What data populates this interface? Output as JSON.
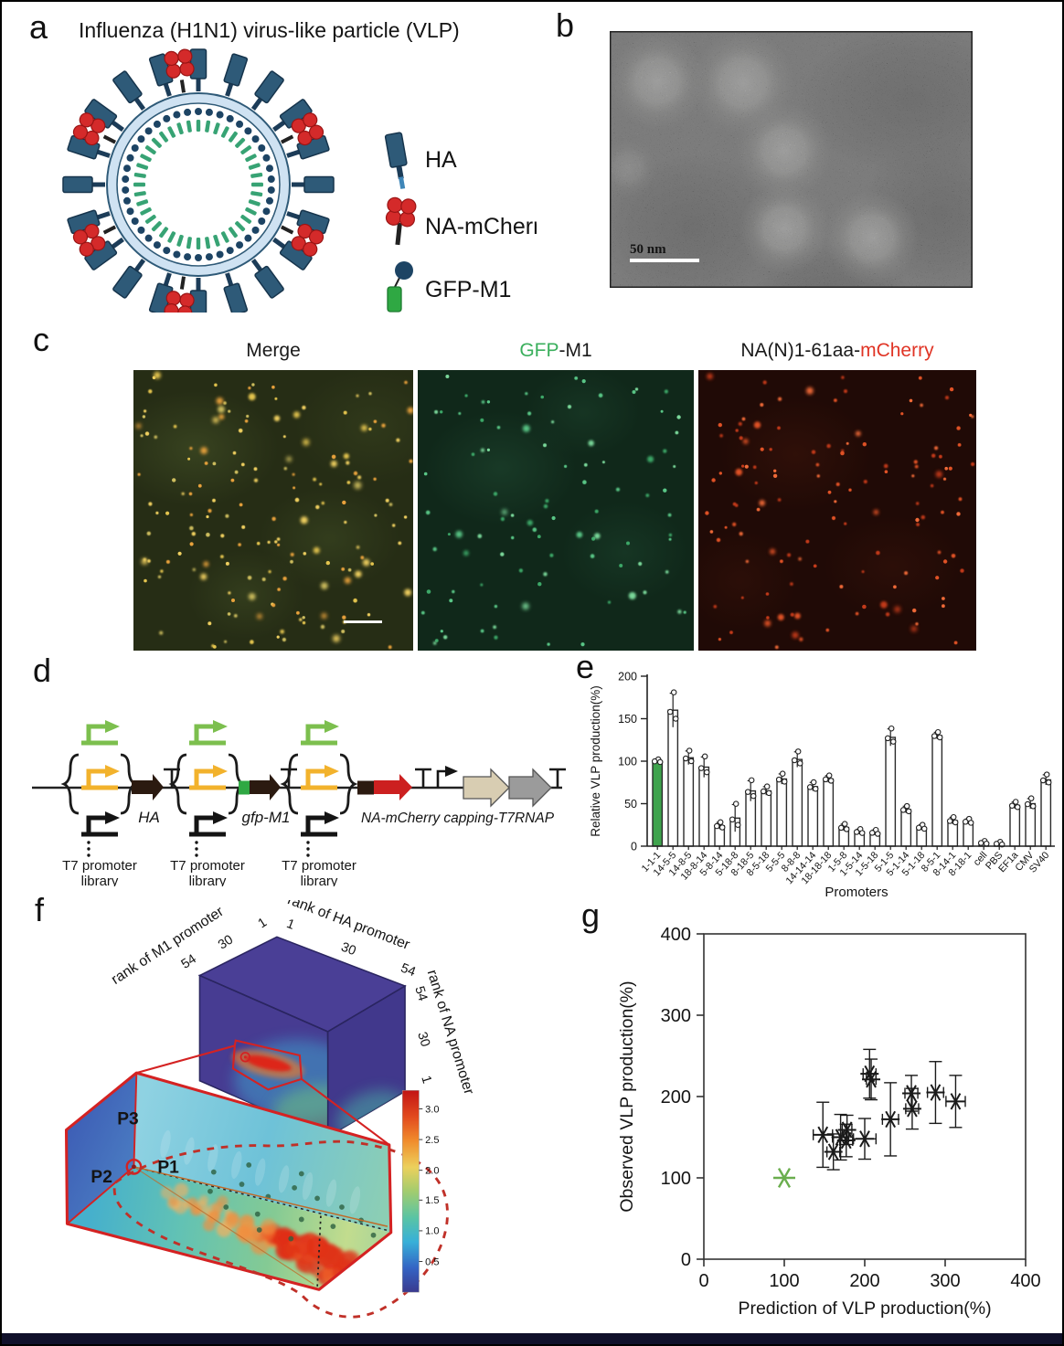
{
  "figure": {
    "background": "#ffffff",
    "border_color": "#000000",
    "bottom_bar_color": "#10102a"
  },
  "panel_a": {
    "label": "a",
    "title": "Influenza (H1N1) virus-like particle (VLP)",
    "legend": [
      {
        "name": "HA"
      },
      {
        "name": "NA-mCherry"
      },
      {
        "name": "GFP-M1"
      }
    ],
    "colors": {
      "ha_spike": "#2e5a78",
      "na_red": "#d42a2a",
      "gfp_green": "#2fa843",
      "membrane": "#cfe2f2",
      "m1_dot": "#1d4464",
      "matrix_green": "#37a374"
    }
  },
  "panel_b": {
    "label": "b",
    "scale_bar_label": "50 nm"
  },
  "panel_c": {
    "label": "c",
    "columns": [
      {
        "parts": [
          {
            "text": "Merge",
            "color": "#1a1a1a"
          }
        ]
      },
      {
        "parts": [
          {
            "text": "GFP",
            "color": "#3aaf5c"
          },
          {
            "text": "-M1",
            "color": "#1a1a1a"
          }
        ]
      },
      {
        "parts": [
          {
            "text": "NA(N)1-61aa-",
            "color": "#1a1a1a"
          },
          {
            "text": "mCherry",
            "color": "#e03425"
          }
        ]
      }
    ],
    "images": [
      {
        "name": "merge",
        "bg": "#262d15",
        "dot_colors": [
          "#e3c44e",
          "#e8a23c",
          "#cdbd5e",
          "#f0d060"
        ],
        "dots": 170,
        "seed": 11
      },
      {
        "name": "gfp-m1",
        "bg": "#10281a",
        "dot_colors": [
          "#59c686",
          "#3da868",
          "#7ad89a"
        ],
        "dots": 95,
        "seed": 22
      },
      {
        "name": "na-mcherry",
        "bg": "#200a06",
        "dot_colors": [
          "#e05226",
          "#c23a1a",
          "#f06a38"
        ],
        "dots": 130,
        "seed": 33
      }
    ]
  },
  "panel_d": {
    "label": "d",
    "library_label_line1": "T7 promoter",
    "library_label_line2": "library",
    "gene1": "HA",
    "gene2": "gfp-M1",
    "gene3": "NA-mCherry capping-T7RNAP",
    "promoter_colors": {
      "green": "#7cbf4e",
      "yellow": "#f2b22c",
      "black": "#141414"
    }
  },
  "panel_e": {
    "label": "e"
  },
  "panel_f": {
    "label": "f",
    "axis_m1": "rank of M1 promoter",
    "axis_ha": "rank of HA promoter",
    "axis_na": "rank of NA promoter",
    "ticks_m1": [
      "1",
      "30",
      "54"
    ],
    "ticks_ha": [
      "1",
      "30",
      "54"
    ],
    "ticks_na": [
      "54",
      "30",
      "1"
    ],
    "points": [
      "P1",
      "P2",
      "P3"
    ],
    "colorbar_ticks": [
      "3.0",
      "2.5",
      "2.0",
      "1.5",
      "1.0",
      "0.5"
    ]
  },
  "panel_g": {
    "label": "g"
  },
  "chart_data": [
    {
      "type": "bar",
      "title": "",
      "xlabel": "Promoters",
      "ylabel": "Relative VLP production(%)",
      "ylim": [
        0,
        200
      ],
      "yticks": [
        0,
        50,
        100,
        150,
        200
      ],
      "categories": [
        "1-1-1",
        "14-5-5",
        "14-8-5",
        "18-8-14",
        "5-8-14",
        "5-18-8",
        "8-18-5",
        "8-5-18",
        "5-5-5",
        "8-8-8",
        "14-14-14",
        "18-18-18",
        "1-5-8",
        "1-5-14",
        "1-5-18",
        "5-1-5",
        "5-1-14",
        "5-1-18",
        "8-5-1",
        "8-14-1",
        "8-18-1",
        "cell",
        "PBS",
        "EF1a",
        "CMV",
        "SV40"
      ],
      "values": [
        100,
        160,
        104,
        93,
        24,
        33,
        65,
        65,
        79,
        102,
        70,
        79,
        22,
        17,
        16,
        128,
        43,
        22,
        130,
        30,
        29,
        4,
        3,
        48,
        50,
        78
      ],
      "errors": [
        2,
        20,
        8,
        12,
        4,
        16,
        12,
        5,
        6,
        9,
        5,
        4,
        4,
        3,
        3,
        10,
        4,
        3,
        4,
        4,
        3,
        2,
        2,
        4,
        6,
        6
      ],
      "highlight_index": 0,
      "highlight_color": "#3fa34d",
      "bar_fill": "#ffffff",
      "bar_stroke": "#2b2b2b",
      "replicate_dots_per_bar": 3
    },
    {
      "type": "scatter",
      "xlabel": "Prediction of VLP production(%)",
      "ylabel": "Observed VLP production(%)",
      "xlim": [
        0,
        400
      ],
      "ylim": [
        0,
        400
      ],
      "xticks": [
        0,
        100,
        200,
        300,
        400
      ],
      "yticks": [
        0,
        100,
        200,
        300,
        400
      ],
      "marker": "asterisk",
      "series": [
        {
          "name": "green_marker",
          "color": "#6aae4e",
          "points": [
            {
              "x": 100,
              "y": 100,
              "xerr": 0,
              "yerr": 0
            }
          ]
        },
        {
          "name": "black_markers",
          "color": "#1a1a1a",
          "points": [
            {
              "x": 148,
              "y": 153,
              "xerr": 12,
              "yerr": 40
            },
            {
              "x": 161,
              "y": 132,
              "xerr": 8,
              "yerr": 22
            },
            {
              "x": 170,
              "y": 150,
              "xerr": 10,
              "yerr": 28
            },
            {
              "x": 177,
              "y": 146,
              "xerr": 8,
              "yerr": 20
            },
            {
              "x": 178,
              "y": 159,
              "xerr": 6,
              "yerr": 18
            },
            {
              "x": 200,
              "y": 148,
              "xerr": 14,
              "yerr": 25
            },
            {
              "x": 206,
              "y": 228,
              "xerr": 8,
              "yerr": 30
            },
            {
              "x": 208,
              "y": 221,
              "xerr": 6,
              "yerr": 25
            },
            {
              "x": 232,
              "y": 172,
              "xerr": 10,
              "yerr": 45
            },
            {
              "x": 258,
              "y": 204,
              "xerr": 8,
              "yerr": 22
            },
            {
              "x": 259,
              "y": 185,
              "xerr": 8,
              "yerr": 25
            },
            {
              "x": 288,
              "y": 205,
              "xerr": 10,
              "yerr": 38
            },
            {
              "x": 313,
              "y": 194,
              "xerr": 12,
              "yerr": 32
            }
          ]
        }
      ]
    }
  ]
}
